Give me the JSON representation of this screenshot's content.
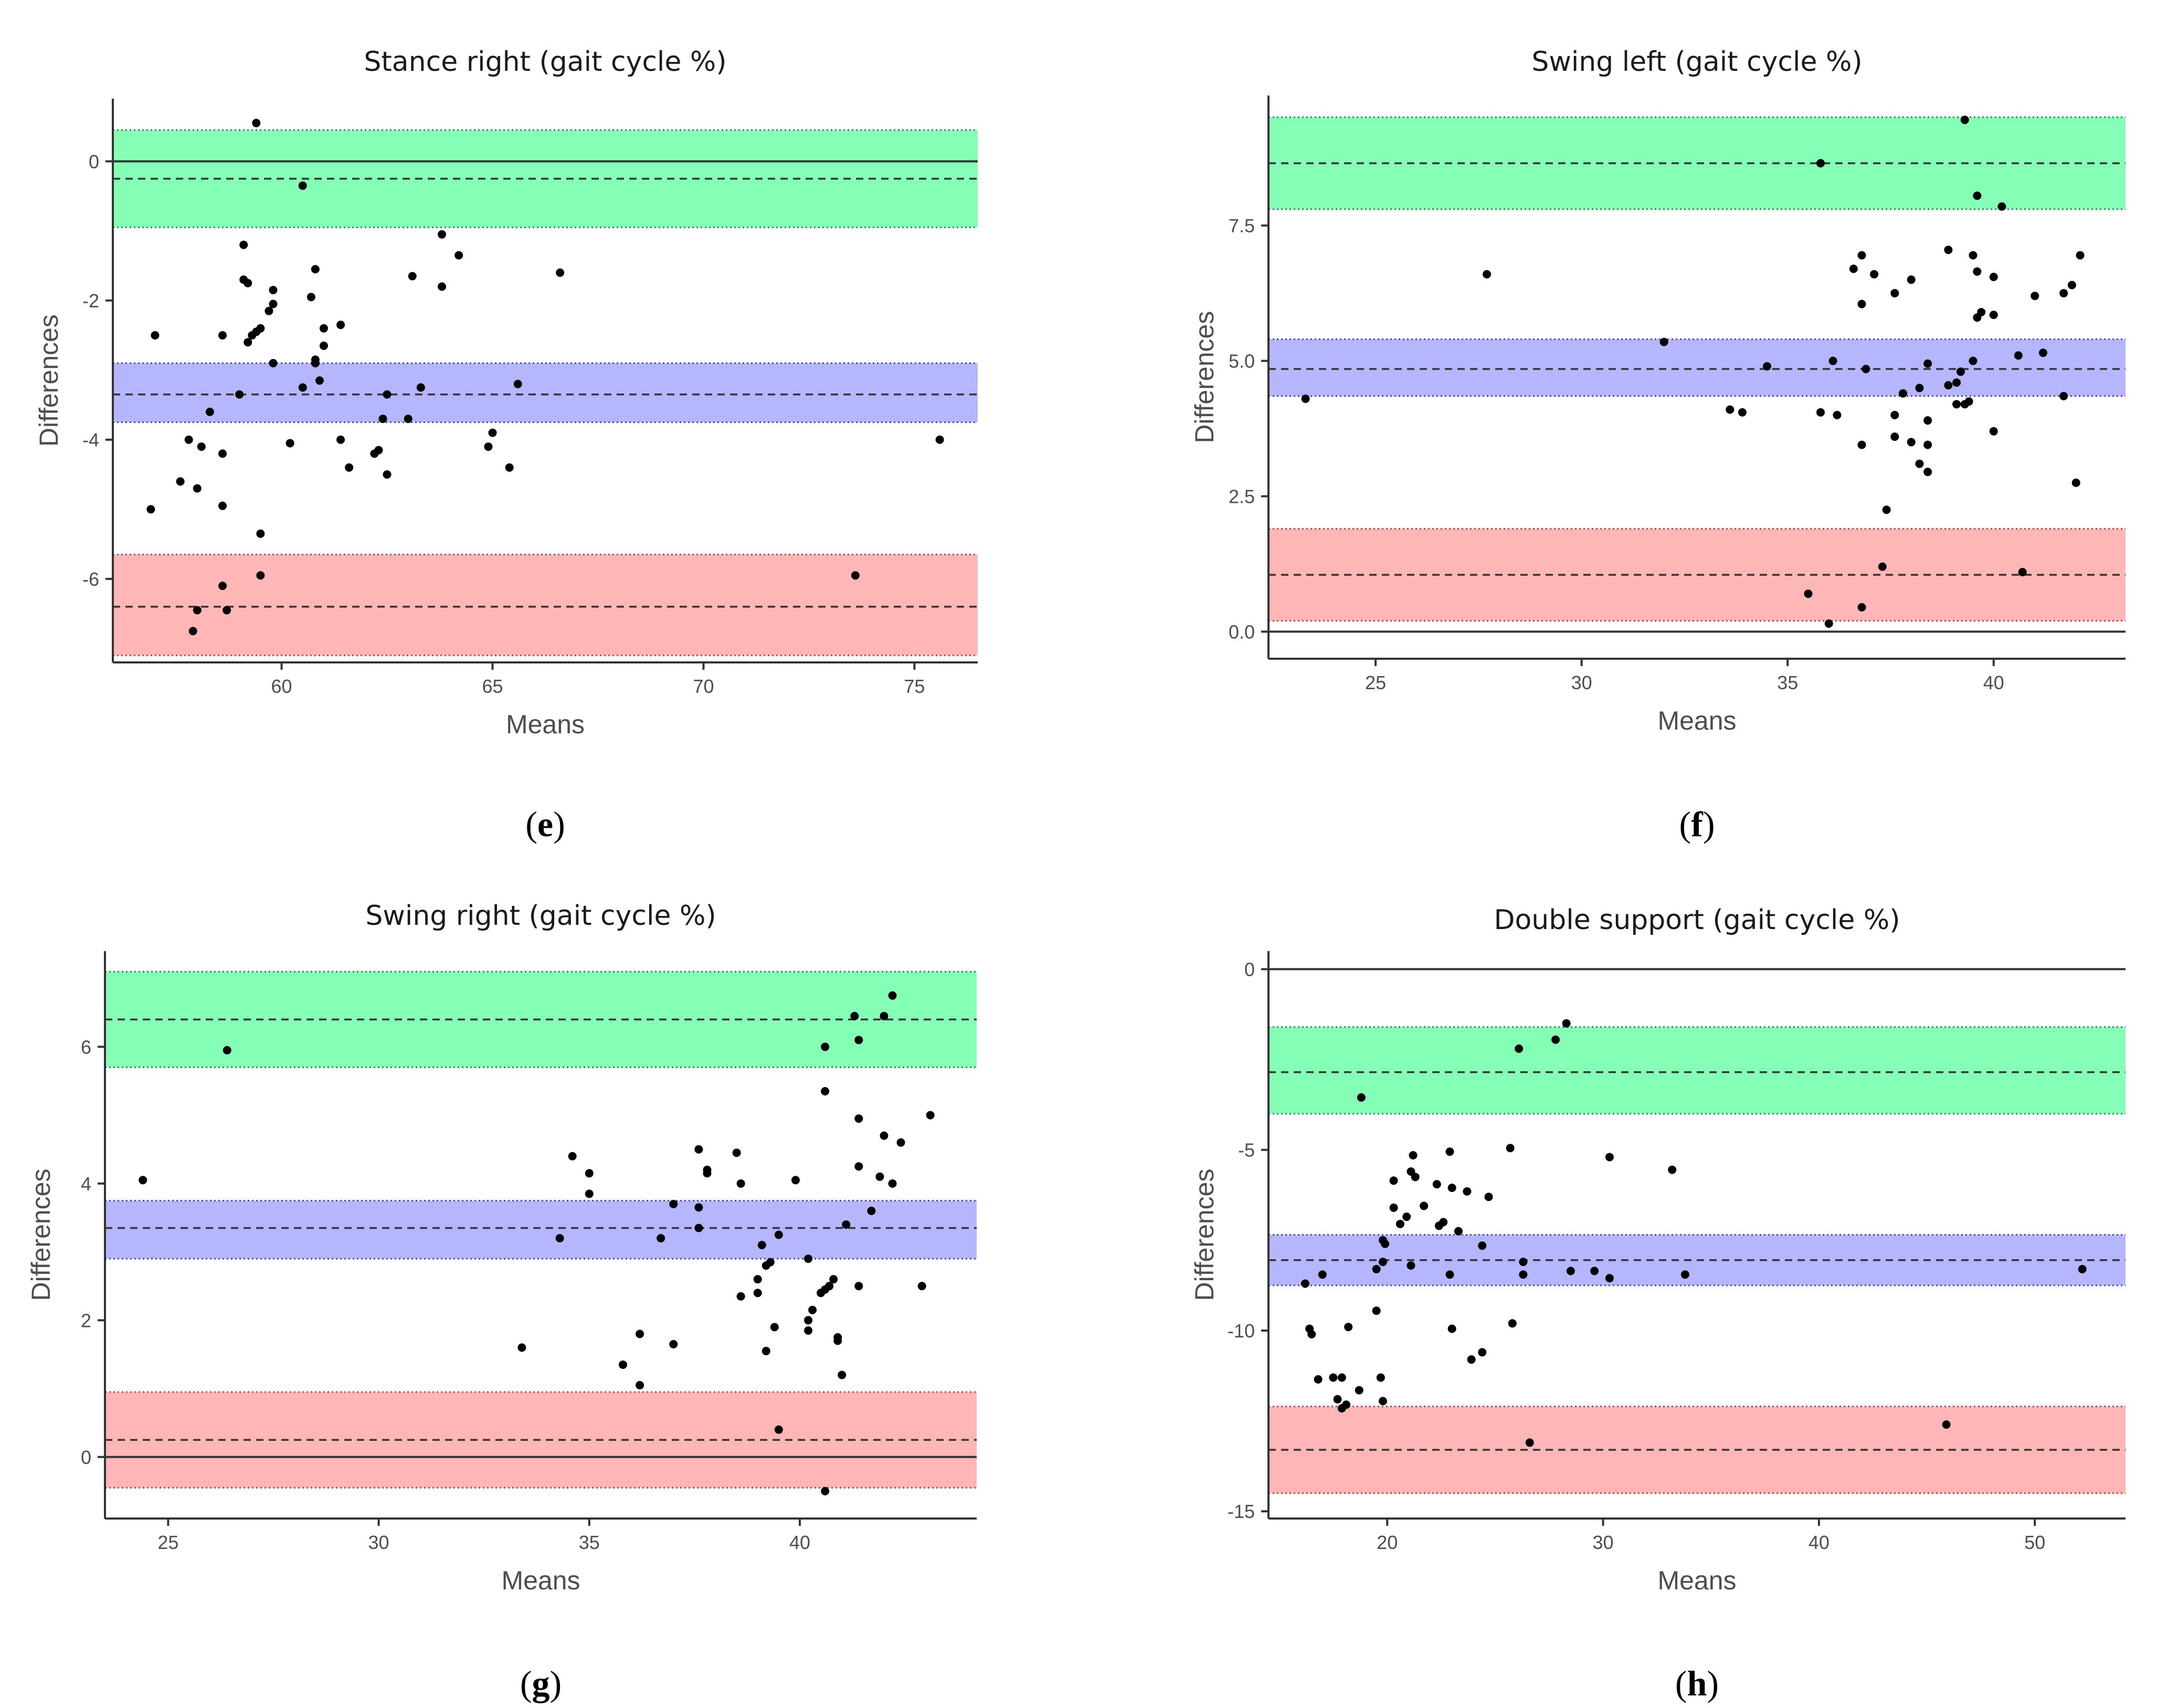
{
  "chart_data": [
    {
      "type": "scatter",
      "panel_label": "e",
      "title": "Stance right (gait cycle %)",
      "xlabel": "Means",
      "ylabel": "Differences",
      "xlim": [
        56,
        76.5
      ],
      "ylim": [
        -7.2,
        0.9
      ],
      "xticks": [
        60,
        65,
        70,
        75
      ],
      "yticks": [
        0,
        -2,
        -4,
        -6
      ],
      "grid": false,
      "bands": {
        "upper": {
          "color": "#00ff66",
          "low": -0.95,
          "high": 0.45,
          "mean": -0.25
        },
        "bias": {
          "color": "#6666ff",
          "low": -3.75,
          "high": -2.9,
          "mean": -3.35
        },
        "lower": {
          "color": "#ff6666",
          "low": -7.1,
          "high": -5.65,
          "mean": -6.4
        }
      },
      "zero_line": 0,
      "points": [
        {
          "x": 59.4,
          "y": 0.55
        },
        {
          "x": 60.5,
          "y": -0.35
        },
        {
          "x": 59.1,
          "y": -1.2
        },
        {
          "x": 59.1,
          "y": -1.7
        },
        {
          "x": 59.2,
          "y": -1.75
        },
        {
          "x": 59.8,
          "y": -1.85
        },
        {
          "x": 59.7,
          "y": -2.15
        },
        {
          "x": 59.8,
          "y": -2.05
        },
        {
          "x": 60.8,
          "y": -1.55
        },
        {
          "x": 60.7,
          "y": -1.95
        },
        {
          "x": 59.5,
          "y": -2.4
        },
        {
          "x": 59.4,
          "y": -2.45
        },
        {
          "x": 59.3,
          "y": -2.5
        },
        {
          "x": 59.2,
          "y": -2.6
        },
        {
          "x": 58.6,
          "y": -2.5
        },
        {
          "x": 57.0,
          "y": -2.5
        },
        {
          "x": 61.0,
          "y": -2.4
        },
        {
          "x": 61.4,
          "y": -2.35
        },
        {
          "x": 61.0,
          "y": -2.65
        },
        {
          "x": 60.8,
          "y": -2.85
        },
        {
          "x": 60.8,
          "y": -2.9
        },
        {
          "x": 59.8,
          "y": -2.9
        },
        {
          "x": 60.9,
          "y": -3.15
        },
        {
          "x": 60.5,
          "y": -3.25
        },
        {
          "x": 59.0,
          "y": -3.35
        },
        {
          "x": 58.3,
          "y": -3.6
        },
        {
          "x": 57.8,
          "y": -4.0
        },
        {
          "x": 58.1,
          "y": -4.1
        },
        {
          "x": 58.6,
          "y": -4.2
        },
        {
          "x": 60.2,
          "y": -4.05
        },
        {
          "x": 61.4,
          "y": -4.0
        },
        {
          "x": 61.6,
          "y": -4.4
        },
        {
          "x": 62.3,
          "y": -4.15
        },
        {
          "x": 62.2,
          "y": -4.2
        },
        {
          "x": 62.5,
          "y": -4.5
        },
        {
          "x": 62.4,
          "y": -3.7
        },
        {
          "x": 62.5,
          "y": -3.35
        },
        {
          "x": 63.0,
          "y": -3.7
        },
        {
          "x": 63.3,
          "y": -3.25
        },
        {
          "x": 63.1,
          "y": -1.65
        },
        {
          "x": 63.8,
          "y": -1.05
        },
        {
          "x": 64.2,
          "y": -1.35
        },
        {
          "x": 63.8,
          "y": -1.8
        },
        {
          "x": 65.6,
          "y": -3.2
        },
        {
          "x": 65.0,
          "y": -3.9
        },
        {
          "x": 64.9,
          "y": -4.1
        },
        {
          "x": 65.4,
          "y": -4.4
        },
        {
          "x": 66.6,
          "y": -1.6
        },
        {
          "x": 57.6,
          "y": -4.6
        },
        {
          "x": 58.0,
          "y": -4.7
        },
        {
          "x": 56.9,
          "y": -5.0
        },
        {
          "x": 58.6,
          "y": -4.95
        },
        {
          "x": 59.5,
          "y": -5.35
        },
        {
          "x": 58.6,
          "y": -6.1
        },
        {
          "x": 59.5,
          "y": -5.95
        },
        {
          "x": 58.0,
          "y": -6.45
        },
        {
          "x": 58.7,
          "y": -6.45
        },
        {
          "x": 57.9,
          "y": -6.75
        },
        {
          "x": 73.6,
          "y": -5.95
        },
        {
          "x": 75.6,
          "y": -4.0
        }
      ]
    },
    {
      "type": "scatter",
      "panel_label": "f",
      "title": "Swing left (gait cycle %)",
      "xlabel": "Means",
      "ylabel": "Differences",
      "xlim": [
        22.4,
        43.2
      ],
      "ylim": [
        -0.5,
        9.9
      ],
      "xticks": [
        25,
        30,
        35,
        40
      ],
      "yticks": [
        "0.0",
        "2.5",
        "5.0",
        "7.5"
      ],
      "grid": false,
      "bands": {
        "upper": {
          "color": "#00ff66",
          "low": 7.8,
          "high": 9.5,
          "mean": 8.65
        },
        "bias": {
          "color": "#6666ff",
          "low": 4.35,
          "high": 5.4,
          "mean": 4.85
        },
        "lower": {
          "color": "#ff6666",
          "low": 0.2,
          "high": 1.9,
          "mean": 1.05
        }
      },
      "zero_line": 0,
      "points": [
        {
          "x": 23.3,
          "y": 4.3
        },
        {
          "x": 27.7,
          "y": 6.6
        },
        {
          "x": 32.0,
          "y": 5.35
        },
        {
          "x": 34.5,
          "y": 4.9
        },
        {
          "x": 33.6,
          "y": 4.1
        },
        {
          "x": 33.9,
          "y": 4.05
        },
        {
          "x": 35.8,
          "y": 8.65
        },
        {
          "x": 39.3,
          "y": 9.45
        },
        {
          "x": 39.6,
          "y": 8.05
        },
        {
          "x": 40.2,
          "y": 7.85
        },
        {
          "x": 36.6,
          "y": 6.7
        },
        {
          "x": 36.8,
          "y": 6.95
        },
        {
          "x": 37.1,
          "y": 6.6
        },
        {
          "x": 36.8,
          "y": 6.05
        },
        {
          "x": 37.6,
          "y": 6.25
        },
        {
          "x": 38.0,
          "y": 6.5
        },
        {
          "x": 38.9,
          "y": 7.05
        },
        {
          "x": 39.5,
          "y": 6.95
        },
        {
          "x": 39.6,
          "y": 6.65
        },
        {
          "x": 40.0,
          "y": 6.55
        },
        {
          "x": 41.0,
          "y": 6.2
        },
        {
          "x": 41.7,
          "y": 6.25
        },
        {
          "x": 41.9,
          "y": 6.4
        },
        {
          "x": 42.1,
          "y": 6.95
        },
        {
          "x": 39.6,
          "y": 5.8
        },
        {
          "x": 39.7,
          "y": 5.9
        },
        {
          "x": 40.0,
          "y": 5.85
        },
        {
          "x": 36.1,
          "y": 5.0
        },
        {
          "x": 36.9,
          "y": 4.85
        },
        {
          "x": 38.4,
          "y": 4.95
        },
        {
          "x": 39.2,
          "y": 4.8
        },
        {
          "x": 39.5,
          "y": 5.0
        },
        {
          "x": 40.6,
          "y": 5.1
        },
        {
          "x": 41.2,
          "y": 5.15
        },
        {
          "x": 35.8,
          "y": 4.05
        },
        {
          "x": 36.2,
          "y": 4.0
        },
        {
          "x": 37.6,
          "y": 4.0
        },
        {
          "x": 37.8,
          "y": 4.4
        },
        {
          "x": 38.2,
          "y": 4.5
        },
        {
          "x": 38.9,
          "y": 4.55
        },
        {
          "x": 39.1,
          "y": 4.6
        },
        {
          "x": 39.1,
          "y": 4.2
        },
        {
          "x": 39.4,
          "y": 4.25
        },
        {
          "x": 39.3,
          "y": 4.2
        },
        {
          "x": 38.0,
          "y": 3.5
        },
        {
          "x": 36.8,
          "y": 3.45
        },
        {
          "x": 37.6,
          "y": 3.6
        },
        {
          "x": 38.4,
          "y": 3.9
        },
        {
          "x": 40.0,
          "y": 3.7
        },
        {
          "x": 38.4,
          "y": 3.45
        },
        {
          "x": 38.2,
          "y": 3.1
        },
        {
          "x": 38.4,
          "y": 2.95
        },
        {
          "x": 41.7,
          "y": 4.35
        },
        {
          "x": 42.0,
          "y": 2.75
        },
        {
          "x": 37.4,
          "y": 2.25
        },
        {
          "x": 37.3,
          "y": 1.2
        },
        {
          "x": 40.7,
          "y": 1.1
        },
        {
          "x": 35.5,
          "y": 0.7
        },
        {
          "x": 36.8,
          "y": 0.45
        },
        {
          "x": 36.0,
          "y": 0.15
        }
      ]
    },
    {
      "type": "scatter",
      "panel_label": "g",
      "title": "Swing right (gait cycle %)",
      "xlabel": "Means",
      "ylabel": "Differences",
      "xlim": [
        23.5,
        44.2
      ],
      "ylim": [
        -0.9,
        7.4
      ],
      "xticks": [
        25,
        30,
        35,
        40
      ],
      "yticks": [
        0,
        2,
        4,
        6
      ],
      "grid": false,
      "bands": {
        "upper": {
          "color": "#00ff66",
          "low": 5.7,
          "high": 7.1,
          "mean": 6.4
        },
        "bias": {
          "color": "#6666ff",
          "low": 2.9,
          "high": 3.75,
          "mean": 3.35
        },
        "lower": {
          "color": "#ff6666",
          "low": -0.45,
          "high": 0.95,
          "mean": 0.25
        }
      },
      "zero_line": 0,
      "points": [
        {
          "x": 24.4,
          "y": 4.05
        },
        {
          "x": 26.4,
          "y": 5.95
        },
        {
          "x": 33.4,
          "y": 1.6
        },
        {
          "x": 34.3,
          "y": 3.2
        },
        {
          "x": 34.6,
          "y": 4.4
        },
        {
          "x": 35.0,
          "y": 4.15
        },
        {
          "x": 35.0,
          "y": 3.85
        },
        {
          "x": 35.8,
          "y": 1.35
        },
        {
          "x": 36.2,
          "y": 1.8
        },
        {
          "x": 36.2,
          "y": 1.05
        },
        {
          "x": 36.7,
          "y": 3.2
        },
        {
          "x": 37.0,
          "y": 3.7
        },
        {
          "x": 37.0,
          "y": 1.65
        },
        {
          "x": 37.6,
          "y": 4.5
        },
        {
          "x": 37.6,
          "y": 3.65
        },
        {
          "x": 37.6,
          "y": 3.35
        },
        {
          "x": 37.8,
          "y": 4.2
        },
        {
          "x": 37.8,
          "y": 4.15
        },
        {
          "x": 38.5,
          "y": 4.45
        },
        {
          "x": 38.6,
          "y": 4.0
        },
        {
          "x": 38.6,
          "y": 2.35
        },
        {
          "x": 39.0,
          "y": 2.4
        },
        {
          "x": 39.0,
          "y": 2.6
        },
        {
          "x": 39.1,
          "y": 3.1
        },
        {
          "x": 39.2,
          "y": 2.8
        },
        {
          "x": 39.3,
          "y": 2.85
        },
        {
          "x": 39.2,
          "y": 1.55
        },
        {
          "x": 39.5,
          "y": 3.25
        },
        {
          "x": 39.4,
          "y": 1.9
        },
        {
          "x": 39.9,
          "y": 4.05
        },
        {
          "x": 40.2,
          "y": 2.9
        },
        {
          "x": 40.2,
          "y": 2.0
        },
        {
          "x": 40.2,
          "y": 1.85
        },
        {
          "x": 40.3,
          "y": 2.15
        },
        {
          "x": 40.5,
          "y": 2.4
        },
        {
          "x": 40.6,
          "y": 2.45
        },
        {
          "x": 40.8,
          "y": 2.6
        },
        {
          "x": 40.7,
          "y": 2.5
        },
        {
          "x": 40.9,
          "y": 1.75
        },
        {
          "x": 40.9,
          "y": 1.7
        },
        {
          "x": 41.0,
          "y": 1.2
        },
        {
          "x": 41.1,
          "y": 3.4
        },
        {
          "x": 40.6,
          "y": 5.35
        },
        {
          "x": 41.4,
          "y": 4.95
        },
        {
          "x": 41.4,
          "y": 4.25
        },
        {
          "x": 41.4,
          "y": 2.5
        },
        {
          "x": 41.7,
          "y": 3.6
        },
        {
          "x": 41.9,
          "y": 4.1
        },
        {
          "x": 42.0,
          "y": 4.7
        },
        {
          "x": 42.2,
          "y": 4.0
        },
        {
          "x": 42.4,
          "y": 4.6
        },
        {
          "x": 42.9,
          "y": 2.5
        },
        {
          "x": 43.1,
          "y": 5.0
        },
        {
          "x": 40.6,
          "y": 6.0
        },
        {
          "x": 41.3,
          "y": 6.45
        },
        {
          "x": 41.4,
          "y": 6.1
        },
        {
          "x": 42.0,
          "y": 6.45
        },
        {
          "x": 42.2,
          "y": 6.75
        },
        {
          "x": 39.5,
          "y": 0.4
        },
        {
          "x": 40.6,
          "y": -0.5
        }
      ]
    },
    {
      "type": "scatter",
      "panel_label": "h",
      "title": "Double support (gait cycle %)",
      "xlabel": "Means",
      "ylabel": "Differences",
      "xlim": [
        14.5,
        54.2
      ],
      "ylim": [
        -15.2,
        0.5
      ],
      "xticks": [
        20,
        30,
        40,
        50
      ],
      "yticks": [
        0,
        -5,
        -10,
        -15
      ],
      "grid": false,
      "bands": {
        "upper": {
          "color": "#00ff66",
          "low": -4.0,
          "high": -1.6,
          "mean": -2.85
        },
        "bias": {
          "color": "#6666ff",
          "low": -8.75,
          "high": -7.35,
          "mean": -8.05
        },
        "lower": {
          "color": "#ff6666",
          "low": -14.5,
          "high": -12.1,
          "mean": -13.3
        }
      },
      "zero_line": 0,
      "points": [
        {
          "x": 18.8,
          "y": -3.55
        },
        {
          "x": 26.1,
          "y": -2.2
        },
        {
          "x": 27.8,
          "y": -1.95
        },
        {
          "x": 28.3,
          "y": -1.5
        },
        {
          "x": 25.7,
          "y": -4.95
        },
        {
          "x": 22.9,
          "y": -5.05
        },
        {
          "x": 21.2,
          "y": -5.15
        },
        {
          "x": 30.3,
          "y": -5.2
        },
        {
          "x": 33.2,
          "y": -5.55
        },
        {
          "x": 21.1,
          "y": -5.6
        },
        {
          "x": 21.3,
          "y": -5.75
        },
        {
          "x": 20.3,
          "y": -5.85
        },
        {
          "x": 22.3,
          "y": -5.95
        },
        {
          "x": 23.0,
          "y": -6.05
        },
        {
          "x": 23.7,
          "y": -6.15
        },
        {
          "x": 24.7,
          "y": -6.3
        },
        {
          "x": 21.7,
          "y": -6.55
        },
        {
          "x": 20.3,
          "y": -6.6
        },
        {
          "x": 20.9,
          "y": -6.85
        },
        {
          "x": 20.6,
          "y": -7.05
        },
        {
          "x": 22.6,
          "y": -7.0
        },
        {
          "x": 22.4,
          "y": -7.1
        },
        {
          "x": 23.3,
          "y": -7.25
        },
        {
          "x": 19.8,
          "y": -7.5
        },
        {
          "x": 19.9,
          "y": -7.6
        },
        {
          "x": 24.4,
          "y": -7.65
        },
        {
          "x": 26.3,
          "y": -8.1
        },
        {
          "x": 21.1,
          "y": -8.2
        },
        {
          "x": 19.8,
          "y": -8.1
        },
        {
          "x": 19.5,
          "y": -8.3
        },
        {
          "x": 22.9,
          "y": -8.45
        },
        {
          "x": 26.3,
          "y": -8.45
        },
        {
          "x": 28.5,
          "y": -8.35
        },
        {
          "x": 29.6,
          "y": -8.35
        },
        {
          "x": 30.3,
          "y": -8.55
        },
        {
          "x": 33.8,
          "y": -8.45
        },
        {
          "x": 52.2,
          "y": -8.3
        },
        {
          "x": 17.0,
          "y": -8.45
        },
        {
          "x": 16.2,
          "y": -8.7
        },
        {
          "x": 19.5,
          "y": -9.45
        },
        {
          "x": 16.4,
          "y": -9.95
        },
        {
          "x": 16.5,
          "y": -10.1
        },
        {
          "x": 18.2,
          "y": -9.9
        },
        {
          "x": 23.0,
          "y": -9.95
        },
        {
          "x": 25.8,
          "y": -9.8
        },
        {
          "x": 24.4,
          "y": -10.6
        },
        {
          "x": 23.9,
          "y": -10.8
        },
        {
          "x": 16.8,
          "y": -11.35
        },
        {
          "x": 17.5,
          "y": -11.3
        },
        {
          "x": 17.9,
          "y": -11.3
        },
        {
          "x": 19.7,
          "y": -11.3
        },
        {
          "x": 18.7,
          "y": -11.65
        },
        {
          "x": 19.8,
          "y": -11.95
        },
        {
          "x": 17.7,
          "y": -11.9
        },
        {
          "x": 18.1,
          "y": -12.05
        },
        {
          "x": 17.9,
          "y": -12.15
        },
        {
          "x": 45.9,
          "y": -12.6
        },
        {
          "x": 26.6,
          "y": -13.1
        }
      ]
    }
  ]
}
